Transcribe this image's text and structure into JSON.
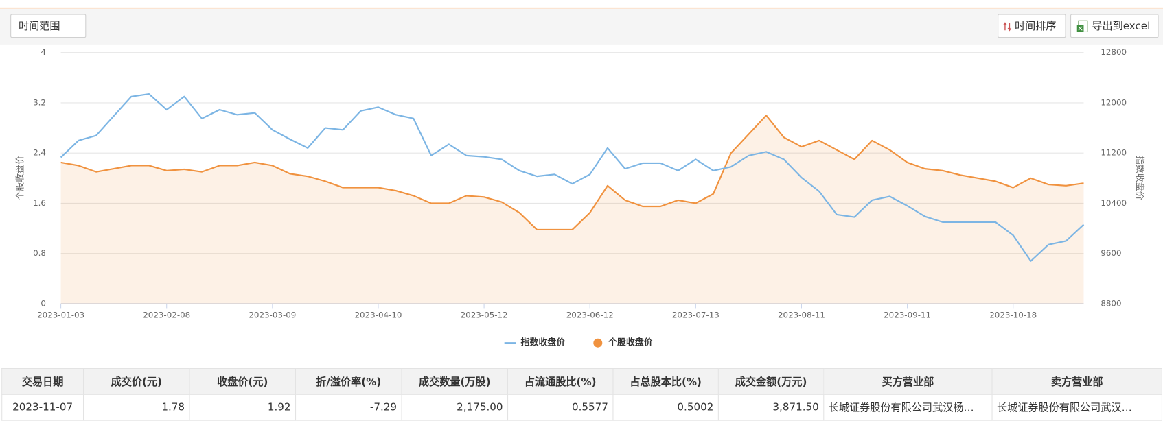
{
  "toolbar": {
    "filter": "时间范围",
    "sort": "时间排序",
    "export": "导出到excel"
  },
  "chart_data": {
    "type": "line",
    "y_label": "个股收盘价",
    "y2_label": "指数收盘价",
    "categories": [
      "2023-01-03",
      null,
      null,
      null,
      null,
      null,
      "2023-02-08",
      null,
      null,
      null,
      null,
      null,
      "2023-03-09",
      null,
      null,
      null,
      null,
      null,
      "2023-04-10",
      null,
      null,
      null,
      null,
      null,
      "2023-05-12",
      null,
      null,
      null,
      null,
      null,
      "2023-06-12",
      null,
      null,
      null,
      null,
      null,
      "2023-07-13",
      null,
      null,
      null,
      null,
      null,
      "2023-08-11",
      null,
      null,
      null,
      null,
      null,
      "2023-09-11",
      null,
      null,
      null,
      null,
      null,
      "2023-10-18",
      null,
      null,
      null,
      null
    ],
    "series": [
      {
        "name": "指数收盘价",
        "color": "#7cb5e4",
        "axis": "y2",
        "marker": "line",
        "values": [
          11130,
          11400,
          11480,
          11790,
          12100,
          12140,
          11890,
          12100,
          11750,
          11890,
          11810,
          11840,
          11570,
          11420,
          11280,
          11600,
          11570,
          11870,
          11930,
          11810,
          11750,
          11160,
          11340,
          11160,
          11140,
          11100,
          10920,
          10830,
          10860,
          10710,
          10860,
          11280,
          10950,
          11040,
          11040,
          10920,
          11100,
          10920,
          10980,
          11160,
          11220,
          11100,
          10810,
          10590,
          10220,
          10180,
          10450,
          10510,
          10360,
          10190,
          10100,
          10100,
          10100,
          10100,
          9890,
          9480,
          9740,
          9800,
          10060
        ]
      },
      {
        "name": "个股收盘价",
        "color": "#f0923f",
        "area": true,
        "marker": "circle",
        "values": [
          2.25,
          2.2,
          2.1,
          2.15,
          2.2,
          2.2,
          2.12,
          2.14,
          2.1,
          2.2,
          2.2,
          2.25,
          2.2,
          2.07,
          2.03,
          1.95,
          1.85,
          1.85,
          1.85,
          1.8,
          1.72,
          1.6,
          1.6,
          1.72,
          1.7,
          1.62,
          1.45,
          1.18,
          1.18,
          1.18,
          1.45,
          1.88,
          1.65,
          1.55,
          1.55,
          1.65,
          1.6,
          1.75,
          2.4,
          2.7,
          3.0,
          2.65,
          2.5,
          2.6,
          2.45,
          2.3,
          2.6,
          2.45,
          2.25,
          2.15,
          2.12,
          2.05,
          2.0,
          1.95,
          1.85,
          2.0,
          1.9,
          1.88,
          1.92
        ]
      }
    ],
    "ylim": [
      0,
      4
    ],
    "yticks": [
      0,
      0.8,
      1.6,
      2.4,
      3.2,
      4
    ],
    "y2lim": [
      8800,
      12800
    ],
    "y2ticks": [
      8800,
      9600,
      10400,
      11200,
      12000,
      12800
    ],
    "grid": true,
    "legend": "bottom"
  },
  "table": {
    "headers": [
      "交易日期",
      "成交价(元)",
      "收盘价(元)",
      "折/溢价率(%)",
      "成交数量(万股)",
      "占流通股比(%)",
      "占总股本比(%)",
      "成交金额(万元)",
      "买方营业部",
      "卖方营业部"
    ],
    "rows": [
      [
        "2023-11-07",
        "1.78",
        "1.92",
        "-7.29",
        "2,175.00",
        "0.5577",
        "0.5002",
        "3,871.50",
        "长城证券股份有限公司武汉杨…",
        "长城证券股份有限公司武汉…"
      ]
    ]
  }
}
